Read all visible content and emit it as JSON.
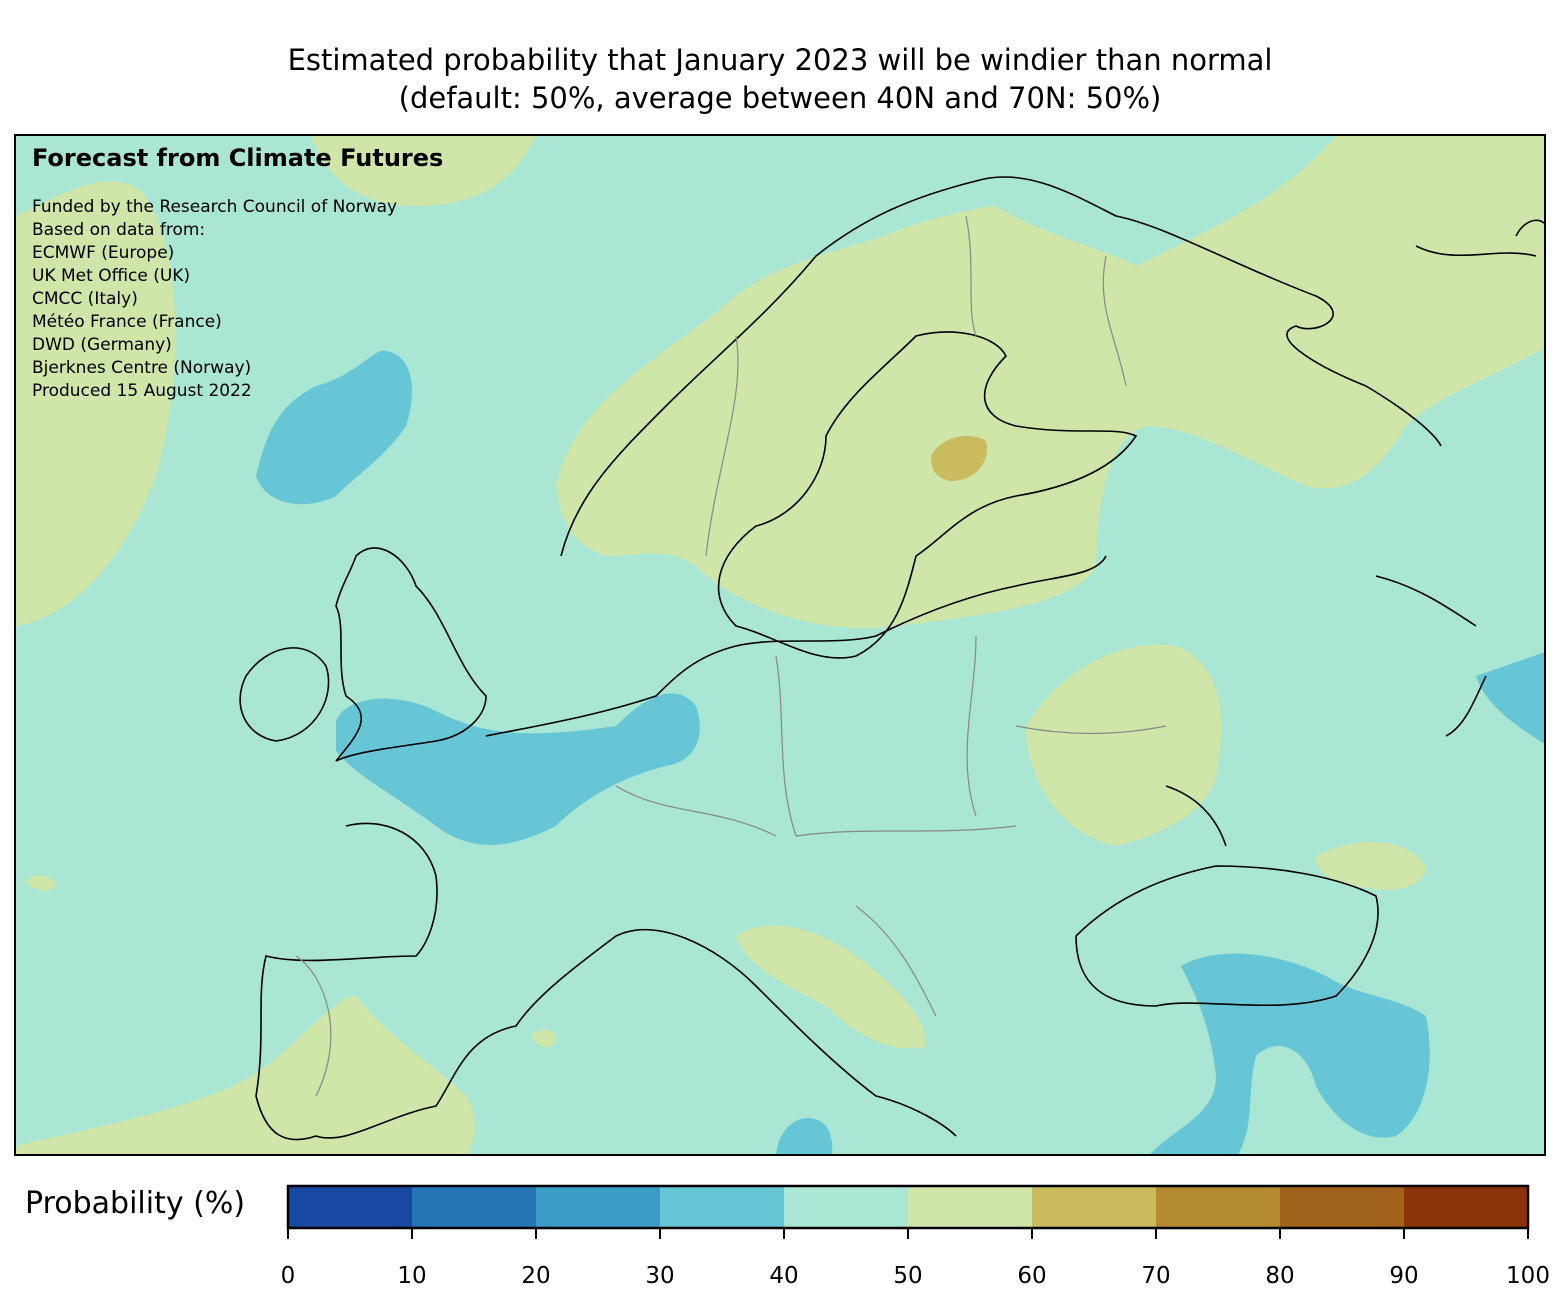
{
  "title": {
    "line1": "Estimated probability that January 2023 will be windier than normal",
    "line2": "(default: 50%, average between 40N and 70N: 50%)"
  },
  "map": {
    "heading": "Forecast from Climate Futures",
    "credits": [
      "Funded by the Research Council of Norway",
      "Based on data from:",
      "ECMWF (Europe)",
      "UK Met Office (UK)",
      "CMCC (Italy)",
      "Météo France (France)",
      "DWD (Germany)",
      "Bjerknes Centre (Norway)",
      "Produced 15 August 2022"
    ]
  },
  "colorbar": {
    "label": "Probability (%)",
    "ticks": [
      "0",
      "10",
      "20",
      "30",
      "40",
      "50",
      "60",
      "70",
      "80",
      "90",
      "100"
    ],
    "range": [
      0,
      100
    ],
    "bins": [
      {
        "min": 0,
        "max": 10,
        "color": "#1749a3"
      },
      {
        "min": 10,
        "max": 20,
        "color": "#2675b5"
      },
      {
        "min": 20,
        "max": 30,
        "color": "#3c9dc9"
      },
      {
        "min": 30,
        "max": 40,
        "color": "#67c6d5"
      },
      {
        "min": 40,
        "max": 50,
        "color": "#a9e6d3"
      },
      {
        "min": 50,
        "max": 60,
        "color": "#d0e5a8"
      },
      {
        "min": 60,
        "max": 70,
        "color": "#cbbb5f"
      },
      {
        "min": 70,
        "max": 80,
        "color": "#b48a30"
      },
      {
        "min": 80,
        "max": 90,
        "color": "#a1631c"
      },
      {
        "min": 90,
        "max": 100,
        "color": "#8b340c"
      }
    ]
  }
}
